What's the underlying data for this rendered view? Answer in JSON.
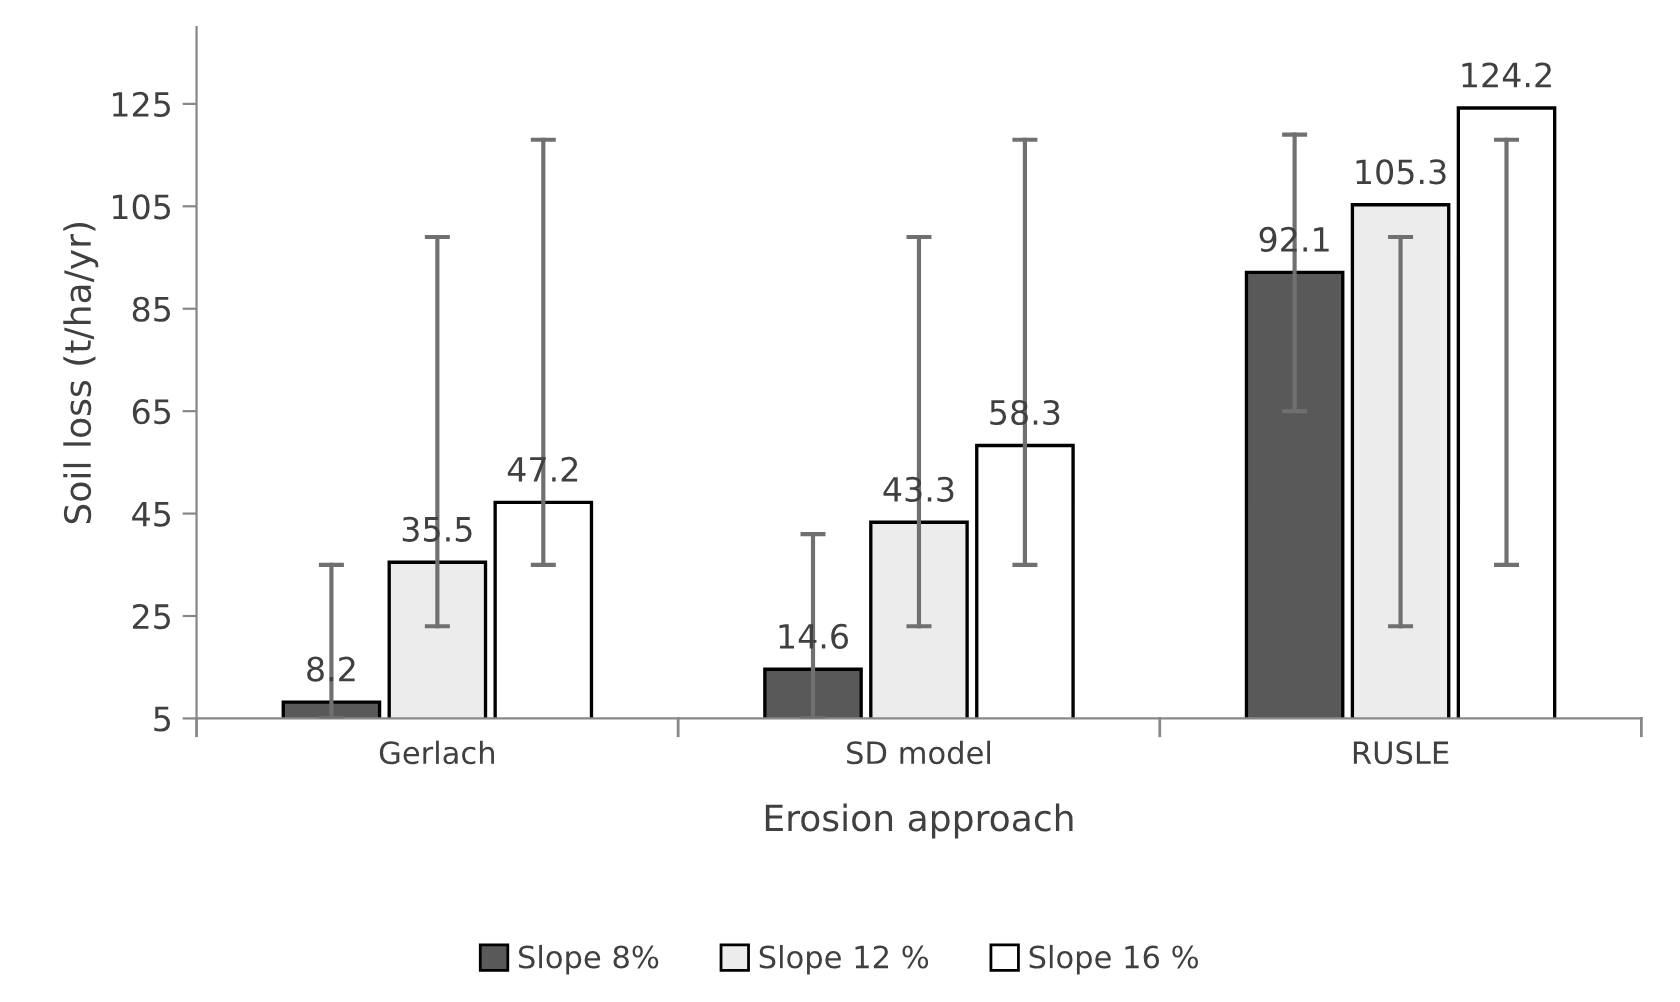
{
  "chart_data": {
    "type": "bar",
    "xlabel": "Erosion approach",
    "ylabel": "Soil loss (t/ha/yr)",
    "categories": [
      "Gerlach",
      "SD model",
      "RUSLE"
    ],
    "series": [
      {
        "name": "Slope 8%",
        "color": "#595959",
        "values": [
          8.2,
          14.6,
          92.1
        ],
        "errors": [
          [
            5,
            35
          ],
          [
            5,
            41
          ],
          [
            65,
            119
          ]
        ]
      },
      {
        "name": "Slope 12 %",
        "color": "#ececec",
        "values": [
          35.5,
          43.3,
          105.3
        ],
        "errors": [
          [
            23,
            99
          ],
          [
            23,
            99
          ],
          [
            23,
            99
          ]
        ]
      },
      {
        "name": "Slope 16 %",
        "color": "#ffffff",
        "values": [
          47.2,
          58.3,
          124.2
        ],
        "errors": [
          [
            35,
            118
          ],
          [
            35,
            118
          ],
          [
            35,
            118
          ]
        ]
      }
    ],
    "ylim": [
      5,
      140
    ],
    "yticks": [
      5,
      25,
      45,
      65,
      85,
      105,
      125
    ],
    "grid": false,
    "legend": "bottom",
    "data_labels": true
  }
}
